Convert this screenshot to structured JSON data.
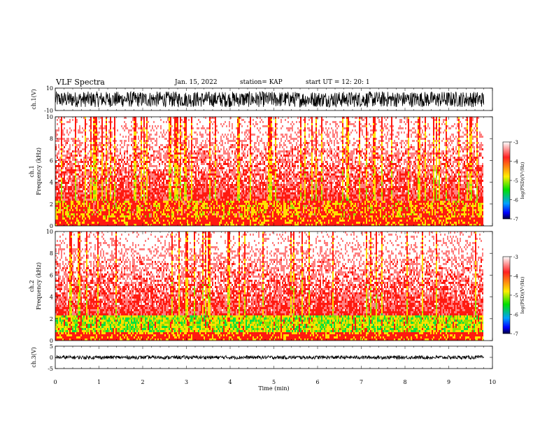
{
  "header": {
    "title": "VLF Spectra",
    "date": "Jan. 15, 2022",
    "station": "station= KAP",
    "start": "start UT =  12: 20: 1"
  },
  "chart_data": [
    {
      "type": "line",
      "panel": "ch1-waveform",
      "ylabel": "ch.1(V)",
      "ylim": [
        -10,
        10
      ],
      "y_ticks": [
        "10",
        "-10"
      ],
      "xlim": [
        0,
        10
      ],
      "data_end_min": 9.8,
      "series": [
        {
          "values_range": [
            -7,
            7
          ]
        }
      ]
    },
    {
      "type": "heatmap",
      "panel": "ch1-spectrogram",
      "ylabel": "ch.1\nFrequency (kHz)",
      "ylim": [
        0,
        10
      ],
      "y_ticks": [
        "0",
        "2",
        "4",
        "6",
        "8",
        "10"
      ],
      "xlim": [
        0,
        10
      ],
      "data_end_min": 9.8,
      "colorbar": {
        "label": "log(PSD)(V²/Hz)",
        "range": [
          -7,
          -3
        ],
        "ticks": [
          "-3",
          "-4",
          "-5",
          "-6",
          "-7"
        ]
      }
    },
    {
      "type": "heatmap",
      "panel": "ch2-spectrogram",
      "ylabel": "ch.2\nFrequency (kHz)",
      "ylim": [
        0,
        10
      ],
      "y_ticks": [
        "0",
        "2",
        "4",
        "6",
        "8",
        "10"
      ],
      "xlim": [
        0,
        10
      ],
      "data_end_min": 9.8,
      "colorbar": {
        "label": "log(PSD)(V²/Hz)",
        "range": [
          -7,
          -3
        ],
        "ticks": [
          "-3",
          "-4",
          "-5",
          "-6",
          "-7"
        ]
      }
    },
    {
      "type": "line",
      "panel": "ch3-waveform",
      "ylabel": "ch.3(V)",
      "ylim": [
        -5,
        5
      ],
      "y_ticks": [
        "5",
        "0",
        "-5"
      ],
      "xlim": [
        0,
        10
      ],
      "data_end_min": 9.8,
      "series": [
        {
          "values_range": [
            -0.8,
            0.8
          ]
        }
      ]
    }
  ],
  "x_axis": {
    "label": "Time (min)",
    "ticks": [
      "0",
      "1",
      "2",
      "3",
      "4",
      "5",
      "6",
      "7",
      "8",
      "9",
      "10"
    ]
  },
  "colors": {
    "low": "#000080",
    "mid_low": "#00d000",
    "mid": "#ffee00",
    "high": "#ff1000",
    "top": "#ffffff"
  }
}
